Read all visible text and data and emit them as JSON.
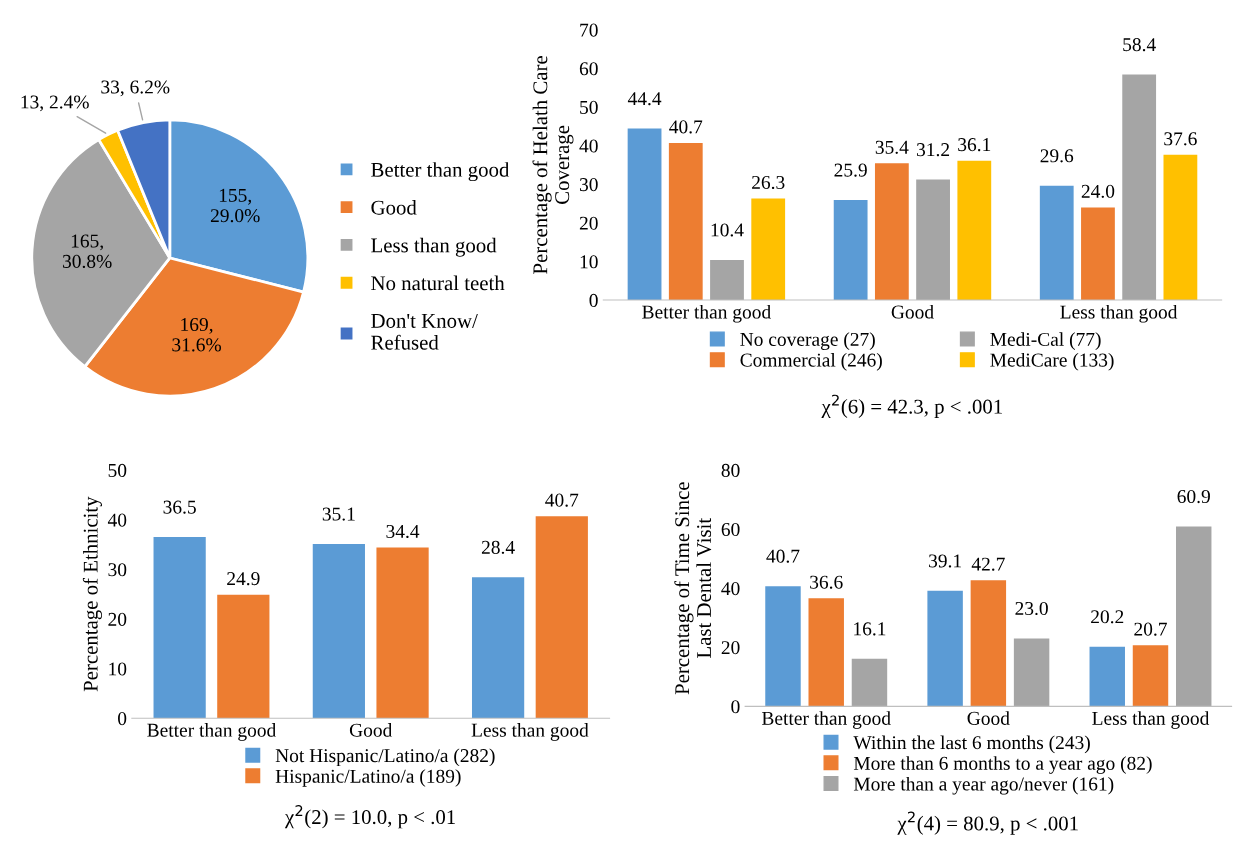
{
  "chart_data": [
    {
      "type": "pie",
      "categories": [
        "Better than good",
        "Good",
        "Less than good",
        "No natural teeth",
        "Don't Know/\nRefused"
      ],
      "values": [
        155,
        169,
        165,
        13,
        33
      ],
      "colors": [
        "#5b9bd5",
        "#ed7d31",
        "#a5a5a5",
        "#ffc000",
        "#4472c4"
      ],
      "value_labels": [
        "155,\n29.0%",
        "169,\n31.6%",
        "165,\n30.8%",
        "13, 2.4%",
        "33, 6.2%"
      ],
      "legend": "right"
    },
    {
      "type": "bar",
      "categories": [
        "Better than good",
        "Good",
        "Less than good"
      ],
      "ylabel": "Percentage of Helath Care\nCoverage",
      "ylim": [
        0,
        70
      ],
      "yticks": [
        0,
        10,
        20,
        30,
        40,
        50,
        60,
        70
      ],
      "data_labels": true,
      "legend": "bottom",
      "annotations": [
        "χ$^{2}$(6) = 42.3, p < .001"
      ],
      "series": [
        {
          "name": "No coverage (27)",
          "color": "#5b9bd5",
          "values": [
            44.4,
            25.9,
            29.6
          ]
        },
        {
          "name": "Commercial (246)",
          "color": "#ed7d31",
          "values": [
            40.7,
            35.4,
            24.0
          ],
          "value_labels": [
            "40.7",
            "35.4",
            "24.0"
          ]
        },
        {
          "name": "Medi-Cal (77)",
          "color": "#a5a5a5",
          "values": [
            10.4,
            31.2,
            58.4
          ]
        },
        {
          "name": "MediCare (133)",
          "color": "#ffc000",
          "values": [
            26.3,
            36.1,
            37.6
          ]
        }
      ]
    },
    {
      "type": "bar",
      "categories": [
        "Better than good",
        "Good",
        "Less than good"
      ],
      "ylabel": "Percentage of Ethnicity",
      "ylim": [
        0,
        50
      ],
      "yticks": [
        0,
        10,
        20,
        30,
        40,
        50
      ],
      "data_labels": true,
      "legend": "bottom",
      "annotations": [
        "χ$^{2}$(2) = 10.0, p < .01"
      ],
      "series": [
        {
          "name": "Not Hispanic/Latino/a (282)",
          "color": "#5b9bd5",
          "values": [
            36.5,
            35.1,
            28.4
          ]
        },
        {
          "name": "Hispanic/Latino/a (189)",
          "color": "#ed7d31",
          "values": [
            24.9,
            34.4,
            40.7
          ]
        }
      ]
    },
    {
      "type": "bar",
      "categories": [
        "Better than good",
        "Good",
        "Less than good"
      ],
      "ylabel": "Percentage of Time Since\nLast Dental Visit",
      "ylim": [
        0,
        80
      ],
      "yticks": [
        0,
        20,
        40,
        60,
        80
      ],
      "data_labels": true,
      "legend": "bottom",
      "annotations": [
        "χ$^{2}$(4) = 80.9, p < .001"
      ],
      "series": [
        {
          "name": "Within the last 6 months (243)",
          "color": "#5b9bd5",
          "values": [
            40.7,
            39.1,
            20.2
          ]
        },
        {
          "name": "More than 6 months to a year ago (82)",
          "color": "#ed7d31",
          "values": [
            36.6,
            42.7,
            20.7
          ]
        },
        {
          "name": "More than a year ago/never (161)",
          "color": "#a5a5a5",
          "values": [
            16.1,
            23.0,
            60.9
          ],
          "value_labels": [
            "16.1",
            "23.0",
            "60.9"
          ]
        }
      ]
    }
  ]
}
